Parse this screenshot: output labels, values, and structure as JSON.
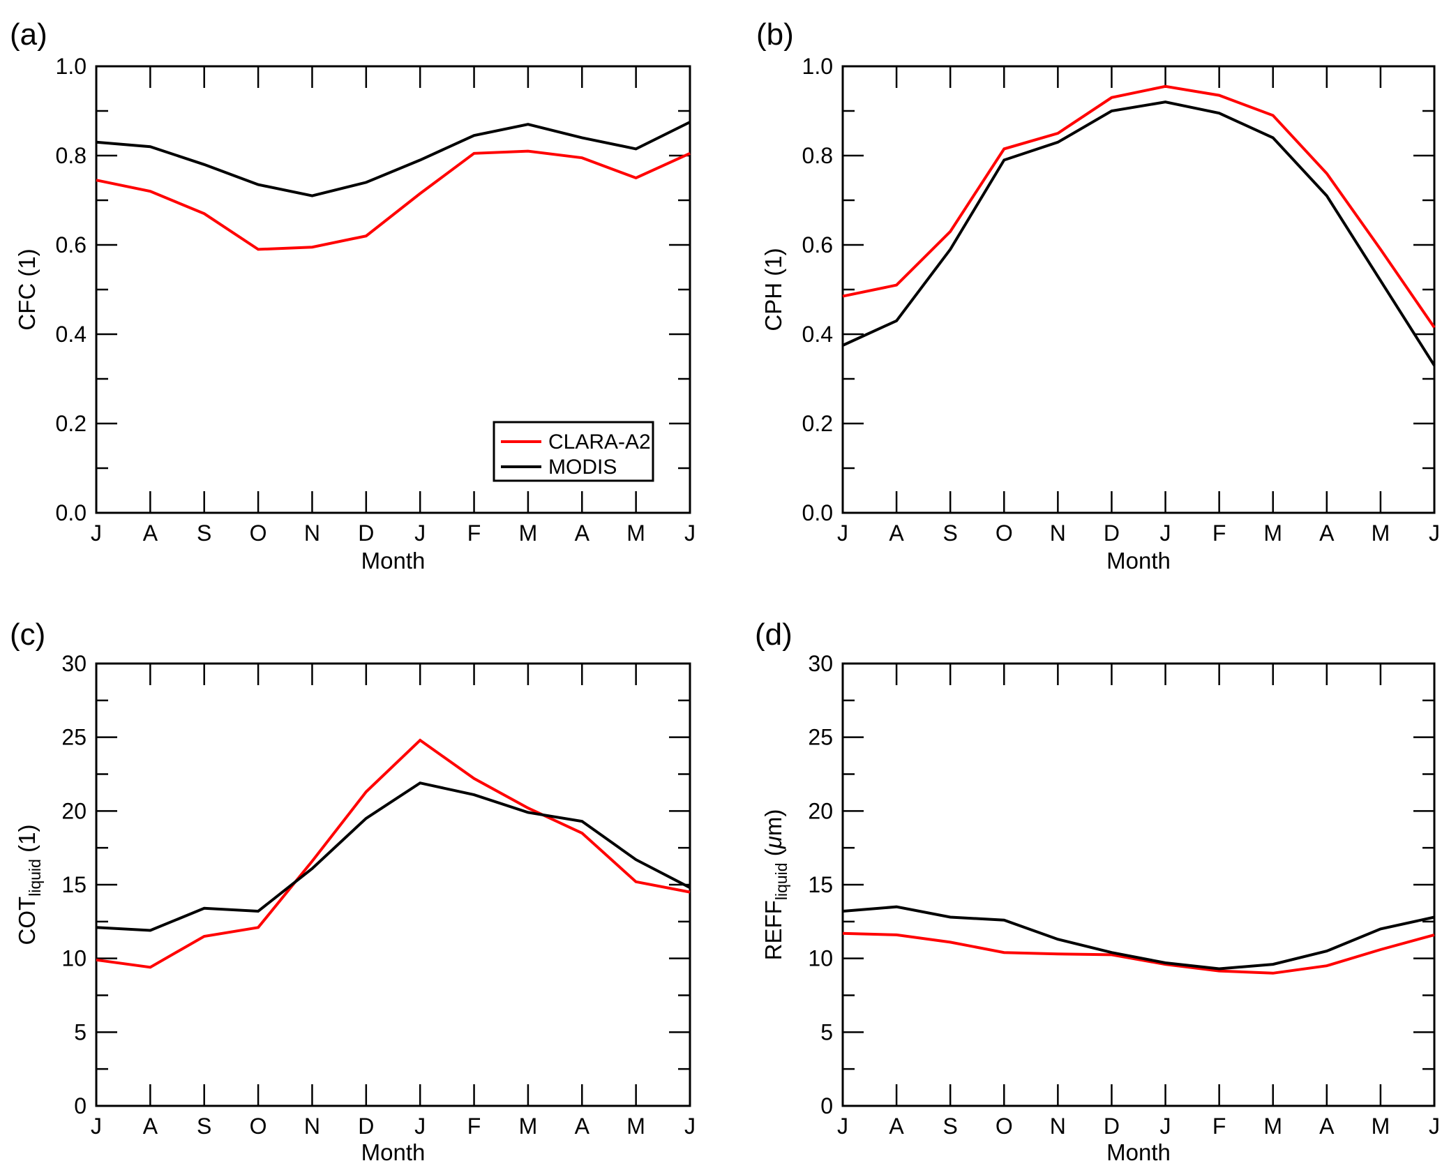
{
  "figure": {
    "background": "#ffffff",
    "x_axis_title": "Month",
    "months": [
      "J",
      "A",
      "S",
      "O",
      "N",
      "D",
      "J",
      "F",
      "M",
      "A",
      "M",
      "J"
    ],
    "accent_red": "#ff0000",
    "accent_black": "#000000"
  },
  "legend": {
    "entries": [
      {
        "label": "CLARA-A2",
        "color": "#ff0000"
      },
      {
        "label": "MODIS",
        "color": "#000000"
      }
    ]
  },
  "chart_data": [
    {
      "type": "line",
      "panel_letter": "(a)",
      "categories": [
        "J",
        "A",
        "S",
        "O",
        "N",
        "D",
        "J",
        "F",
        "M",
        "A",
        "M",
        "J"
      ],
      "xlabel": "Month",
      "ylabel": "CFC (1)",
      "ylabel_parts": [
        {
          "t": "CFC (1)"
        }
      ],
      "ylim": [
        0.0,
        1.0
      ],
      "y_major": 0.2,
      "y_minor": 0.1,
      "y_decimals": 1,
      "grid": false,
      "legend_position": "bottom-right",
      "show_legend": true,
      "series": [
        {
          "name": "CLARA-A2",
          "color": "#ff0000",
          "values": [
            0.745,
            0.72,
            0.67,
            0.59,
            0.595,
            0.62,
            0.715,
            0.805,
            0.81,
            0.795,
            0.75,
            0.805
          ]
        },
        {
          "name": "MODIS",
          "color": "#000000",
          "values": [
            0.83,
            0.82,
            0.78,
            0.735,
            0.71,
            0.74,
            0.79,
            0.845,
            0.87,
            0.84,
            0.815,
            0.875
          ]
        }
      ]
    },
    {
      "type": "line",
      "panel_letter": "(b)",
      "categories": [
        "J",
        "A",
        "S",
        "O",
        "N",
        "D",
        "J",
        "F",
        "M",
        "A",
        "M",
        "J"
      ],
      "xlabel": "Month",
      "ylabel": "CPH (1)",
      "ylabel_parts": [
        {
          "t": "CPH (1)"
        }
      ],
      "ylim": [
        0.0,
        1.0
      ],
      "y_major": 0.2,
      "y_minor": 0.1,
      "y_decimals": 1,
      "grid": false,
      "show_legend": false,
      "series": [
        {
          "name": "CLARA-A2",
          "color": "#ff0000",
          "values": [
            0.485,
            0.51,
            0.63,
            0.815,
            0.85,
            0.93,
            0.955,
            0.935,
            0.89,
            0.76,
            0.59,
            0.415
          ]
        },
        {
          "name": "MODIS",
          "color": "#000000",
          "values": [
            0.375,
            0.43,
            0.59,
            0.79,
            0.83,
            0.9,
            0.92,
            0.895,
            0.84,
            0.71,
            0.52,
            0.33
          ]
        }
      ]
    },
    {
      "type": "line",
      "panel_letter": "(c)",
      "categories": [
        "J",
        "A",
        "S",
        "O",
        "N",
        "D",
        "J",
        "F",
        "M",
        "A",
        "M",
        "J"
      ],
      "xlabel": "Month",
      "ylabel": "COT_liquid (1)",
      "ylabel_parts": [
        {
          "t": "COT"
        },
        {
          "t": "liquid",
          "sub": true
        },
        {
          "t": " (1)"
        }
      ],
      "ylim": [
        0,
        30
      ],
      "y_major": 5,
      "y_minor": 2.5,
      "y_decimals": 0,
      "grid": false,
      "show_legend": false,
      "series": [
        {
          "name": "CLARA-A2",
          "color": "#ff0000",
          "values": [
            9.9,
            9.4,
            11.5,
            12.1,
            16.6,
            21.3,
            24.8,
            22.2,
            20.2,
            18.5,
            15.2,
            14.5
          ]
        },
        {
          "name": "MODIS",
          "color": "#000000",
          "values": [
            12.1,
            11.9,
            13.4,
            13.2,
            16.1,
            19.5,
            21.9,
            21.1,
            19.9,
            19.3,
            16.7,
            14.8
          ]
        }
      ]
    },
    {
      "type": "line",
      "panel_letter": "(d)",
      "categories": [
        "J",
        "A",
        "S",
        "O",
        "N",
        "D",
        "J",
        "F",
        "M",
        "A",
        "M",
        "J"
      ],
      "xlabel": "Month",
      "ylabel": "REFF_liquid (um)",
      "ylabel_parts": [
        {
          "t": "REFF"
        },
        {
          "t": "liquid",
          "sub": true
        },
        {
          "t": " ("
        },
        {
          "t": "μ",
          "italic": true
        },
        {
          "t": "m)"
        }
      ],
      "ylim": [
        0,
        30
      ],
      "y_major": 5,
      "y_minor": 2.5,
      "y_decimals": 0,
      "grid": false,
      "show_legend": false,
      "series": [
        {
          "name": "CLARA-A2",
          "color": "#ff0000",
          "values": [
            11.7,
            11.6,
            11.1,
            10.4,
            10.3,
            10.25,
            9.6,
            9.15,
            9.0,
            9.5,
            10.6,
            11.6
          ]
        },
        {
          "name": "MODIS",
          "color": "#000000",
          "values": [
            13.2,
            13.5,
            12.8,
            12.6,
            11.3,
            10.4,
            9.7,
            9.3,
            9.6,
            10.5,
            12.0,
            12.8
          ]
        }
      ]
    }
  ]
}
